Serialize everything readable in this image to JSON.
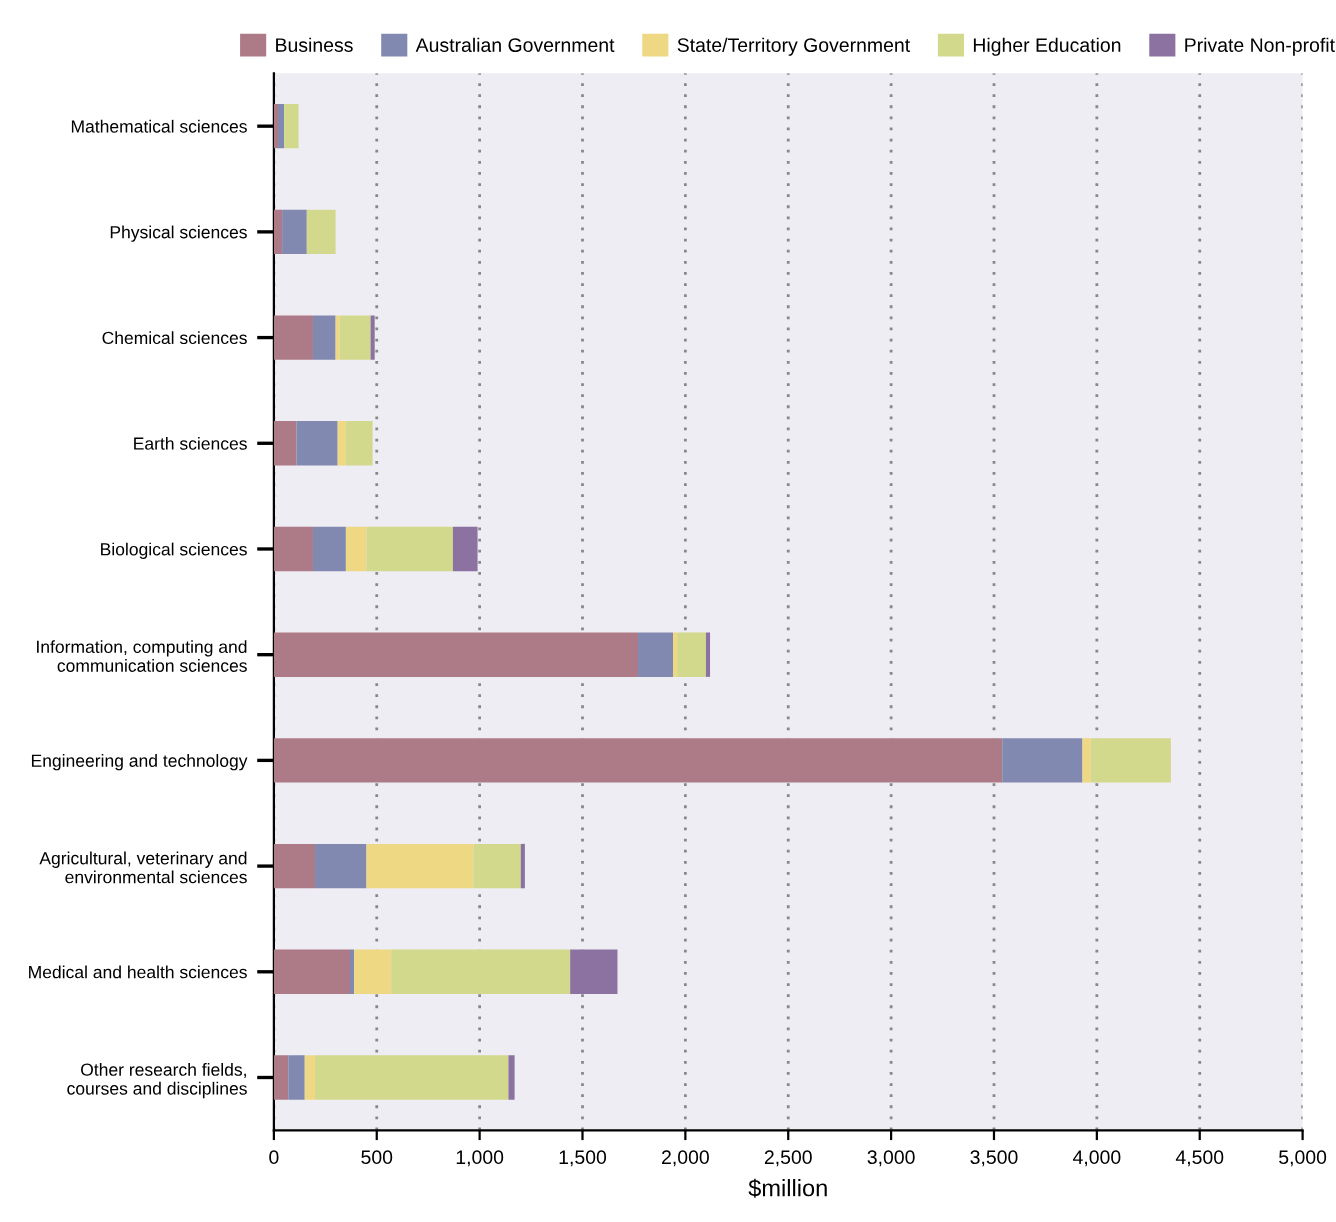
{
  "chart_data": {
    "type": "bar",
    "orientation": "horizontal",
    "stacked": true,
    "xlabel": "$million",
    "categories": [
      "Mathematical sciences",
      "Physical sciences",
      "Chemical sciences",
      "Earth sciences",
      "Biological sciences",
      "Information, computing and\ncommunication sciences",
      "Engineering and technology",
      "Agricultural, veterinary and\nenvironmental sciences",
      "Medical and health sciences",
      "Other research fields,\ncourses and disciplines"
    ],
    "series": [
      {
        "name": "Business",
        "color": "#ad7a87",
        "values": [
          20,
          40,
          190,
          110,
          190,
          1770,
          3540,
          200,
          370,
          70
        ]
      },
      {
        "name": "Australian Government",
        "color": "#8289b0",
        "values": [
          30,
          120,
          110,
          200,
          160,
          170,
          390,
          250,
          20,
          80
        ]
      },
      {
        "name": "State/Territory Government",
        "color": "#eed884",
        "values": [
          0,
          0,
          20,
          40,
          100,
          20,
          40,
          520,
          180,
          50
        ]
      },
      {
        "name": "Higher Education",
        "color": "#d3d98c",
        "values": [
          70,
          140,
          150,
          130,
          420,
          140,
          390,
          230,
          870,
          940
        ]
      },
      {
        "name": "Private Non-profit",
        "color": "#8c72a0",
        "values": [
          0,
          0,
          20,
          0,
          120,
          20,
          0,
          20,
          230,
          30
        ]
      }
    ],
    "xlim": [
      0,
      5000
    ],
    "xticks": [
      0,
      {
        "value": 500,
        "label": "500"
      },
      {
        "value": 1000,
        "label": "1,000"
      },
      {
        "value": 1500,
        "label": "1,500"
      },
      {
        "value": 2000,
        "label": "2,000"
      },
      {
        "value": 2500,
        "label": "2,500"
      },
      {
        "value": 3000,
        "label": "3,000"
      },
      {
        "value": 3500,
        "label": "3,500"
      },
      {
        "value": 4000,
        "label": "4,000"
      },
      {
        "value": 4500,
        "label": "4,500"
      },
      {
        "value": 5000,
        "label": "5,000"
      }
    ],
    "grid": "x",
    "legend": "top"
  }
}
